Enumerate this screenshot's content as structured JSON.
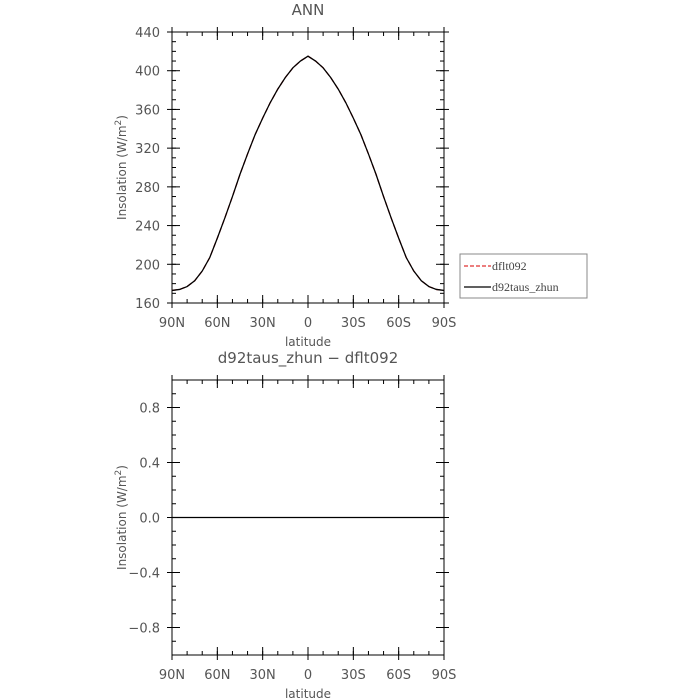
{
  "chart_data": [
    {
      "type": "line",
      "title": "ANN",
      "xlabel": "latitude",
      "ylabel": "Insolation (W/m²)",
      "ylabel_main": "Insolation (W/m",
      "ylabel_sup": "2",
      "ylabel_close": ")",
      "xlim": [
        -90,
        90
      ],
      "ylim": [
        160,
        440
      ],
      "xticks": [
        -90,
        -60,
        -30,
        0,
        30,
        60,
        90
      ],
      "xtick_labels": [
        "90N",
        "60N",
        "30N",
        "0",
        "30S",
        "60S",
        "90S"
      ],
      "yticks": [
        160,
        200,
        240,
        280,
        320,
        360,
        400,
        440
      ],
      "ytick_labels": [
        "160",
        "200",
        "240",
        "280",
        "320",
        "360",
        "400",
        "440"
      ],
      "x": [
        -90,
        -85,
        -80,
        -75,
        -70,
        -65,
        -60,
        -55,
        -50,
        -45,
        -40,
        -35,
        -30,
        -25,
        -20,
        -15,
        -10,
        -5,
        0,
        5,
        10,
        15,
        20,
        25,
        30,
        35,
        40,
        45,
        50,
        55,
        60,
        65,
        70,
        75,
        80,
        85,
        90
      ],
      "series": [
        {
          "name": "dflt092",
          "color": "#e03030",
          "dash": "dashed",
          "values": [
            173,
            174,
            177,
            183,
            193,
            207,
            227,
            248,
            270,
            293,
            314,
            334,
            351,
            367,
            381,
            393,
            403,
            410,
            415,
            410,
            403,
            393,
            381,
            367,
            351,
            334,
            314,
            293,
            270,
            248,
            227,
            207,
            193,
            183,
            177,
            174,
            173
          ]
        },
        {
          "name": "d92taus_zhun",
          "color": "#000000",
          "dash": "solid",
          "values": [
            173,
            174,
            177,
            183,
            193,
            207,
            227,
            248,
            270,
            293,
            314,
            334,
            351,
            367,
            381,
            393,
            403,
            410,
            415,
            410,
            403,
            393,
            381,
            367,
            351,
            334,
            314,
            293,
            270,
            248,
            227,
            207,
            193,
            183,
            177,
            174,
            173
          ]
        }
      ],
      "legend_position": "right"
    },
    {
      "type": "line",
      "title": "d92taus_zhun − dflt092",
      "xlabel": "latitude",
      "ylabel": "Insolation (W/m²)",
      "ylabel_main": "Insolation (W/m",
      "ylabel_sup": "2",
      "ylabel_close": ")",
      "xlim": [
        -90,
        90
      ],
      "ylim": [
        -1,
        1
      ],
      "xticks": [
        -90,
        -60,
        -30,
        0,
        30,
        60,
        90
      ],
      "xtick_labels": [
        "90N",
        "60N",
        "30N",
        "0",
        "30S",
        "60S",
        "90S"
      ],
      "yticks": [
        -0.8,
        -0.4,
        0.0,
        0.4,
        0.8
      ],
      "ytick_labels": [
        "−0.8",
        "−0.4",
        "0.0",
        "0.4",
        "0.8"
      ],
      "x": [
        -90,
        90
      ],
      "series": [
        {
          "color": "#000000",
          "dash": "solid",
          "values": [
            0,
            0
          ]
        }
      ]
    }
  ]
}
